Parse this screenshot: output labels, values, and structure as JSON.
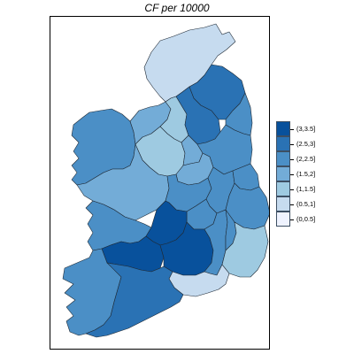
{
  "title": "CF per 10000",
  "legend": {
    "items": [
      {
        "label": "(3,3.5]",
        "color": "#08519c"
      },
      {
        "label": "(2.5,3]",
        "color": "#2a72b4"
      },
      {
        "label": "(2,2.5]",
        "color": "#4b8fc6"
      },
      {
        "label": "(1.5,2]",
        "color": "#73acd7"
      },
      {
        "label": "(1,1.5]",
        "color": "#9ecae1"
      },
      {
        "label": "(0.5,1]",
        "color": "#c6dbef"
      },
      {
        "label": "(0,0.5]",
        "color": "#eff3ff"
      }
    ]
  },
  "regions": [
    {
      "name": "Donegal",
      "category": "(0.5,1]"
    },
    {
      "name": "Mayo",
      "category": "(2,2.5]"
    },
    {
      "name": "Sligo",
      "category": "(1.5,2]"
    },
    {
      "name": "Leitrim",
      "category": "(1,1.5]"
    },
    {
      "name": "Cavan",
      "category": "(2.5,3]"
    },
    {
      "name": "Monaghan",
      "category": "(2.5,3]"
    },
    {
      "name": "Louth",
      "category": "(2,2.5]"
    },
    {
      "name": "Roscommon",
      "category": "(1,1.5]"
    },
    {
      "name": "Longford",
      "category": "(1.5,2]"
    },
    {
      "name": "Westmeath",
      "category": "(1.5,2]"
    },
    {
      "name": "Meath",
      "category": "(2,2.5]"
    },
    {
      "name": "Galway",
      "category": "(1.5,2]"
    },
    {
      "name": "Offaly",
      "category": "(2,2.5]"
    },
    {
      "name": "Kildare",
      "category": "(2,2.5]"
    },
    {
      "name": "Dublin",
      "category": "(2,2.5]"
    },
    {
      "name": "Laois",
      "category": "(2,2.5]"
    },
    {
      "name": "Wicklow",
      "category": "(2,2.5]"
    },
    {
      "name": "Clare",
      "category": "(2,2.5]"
    },
    {
      "name": "North Tipperary",
      "category": "(3,3.5]"
    },
    {
      "name": "Limerick",
      "category": "(3,3.5]"
    },
    {
      "name": "South Tipperary",
      "category": "(3,3.5]"
    },
    {
      "name": "Kilkenny",
      "category": "(2,2.5]"
    },
    {
      "name": "Carlow",
      "category": "(2,2.5]"
    },
    {
      "name": "Wexford",
      "category": "(1,1.5]"
    },
    {
      "name": "Waterford",
      "category": "(0.5,1]"
    },
    {
      "name": "Kerry",
      "category": "(2,2.5]"
    },
    {
      "name": "Cork",
      "category": "(2.5,3]"
    }
  ]
}
